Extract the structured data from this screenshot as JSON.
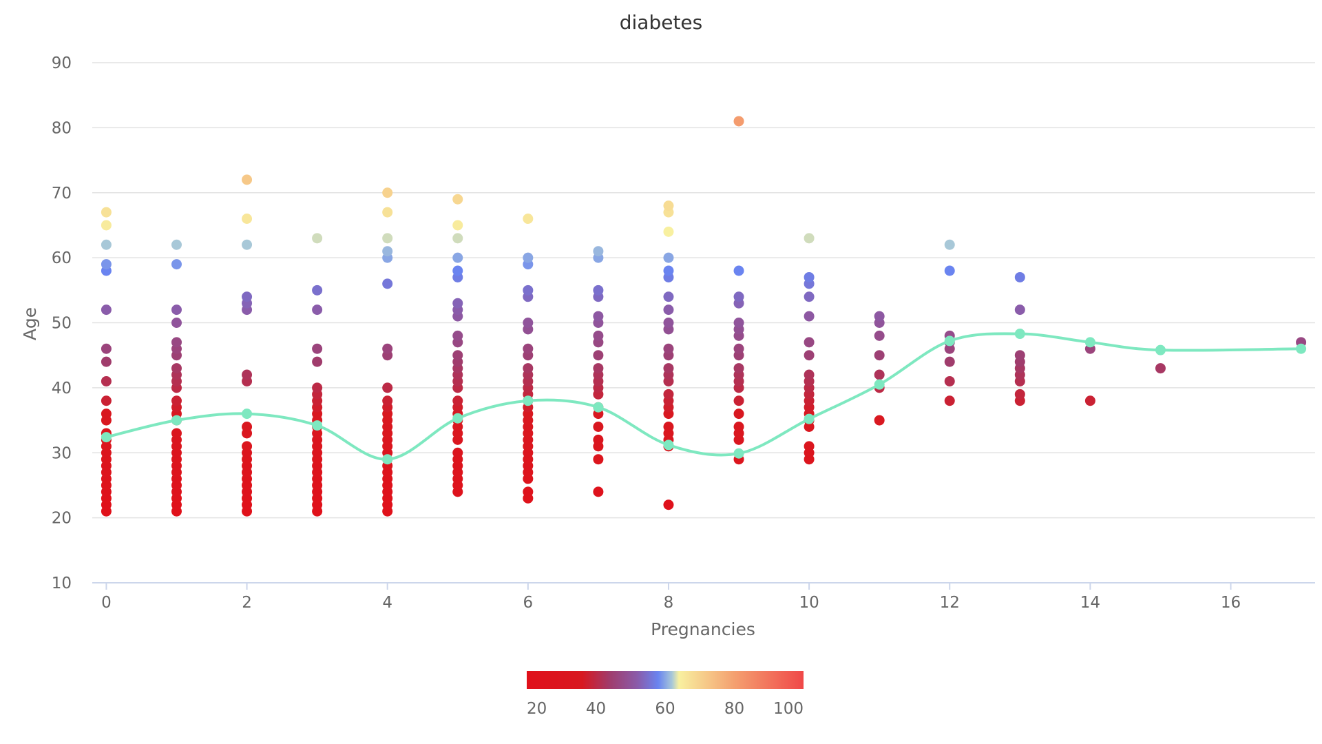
{
  "chart_data": {
    "type": "scatter",
    "title": "diabetes",
    "xlabel": "Pregnancies",
    "ylabel": "Age",
    "xlim": [
      -0.2,
      17.2
    ],
    "ylim": [
      10,
      90
    ],
    "x_ticks": [
      0,
      2,
      4,
      6,
      8,
      10,
      12,
      14,
      16
    ],
    "y_ticks": [
      10,
      20,
      30,
      40,
      50,
      60,
      70,
      80,
      90
    ],
    "grid": true,
    "colorbar": {
      "label_ticks": [
        20,
        40,
        60,
        80,
        100
      ],
      "range": [
        20,
        100
      ],
      "stops": [
        {
          "value": 20,
          "color": "#e0101a"
        },
        {
          "value": 36,
          "color": "#d81820"
        },
        {
          "value": 44,
          "color": "#a03c6c"
        },
        {
          "value": 52,
          "color": "#8a5caa"
        },
        {
          "value": 58,
          "color": "#6a84f0"
        },
        {
          "value": 62,
          "color": "#a8c8d8"
        },
        {
          "value": 64,
          "color": "#f8f0a0"
        },
        {
          "value": 80,
          "color": "#f4a070"
        },
        {
          "value": 100,
          "color": "#f04848"
        }
      ]
    },
    "series": [
      {
        "type": "scatter",
        "color_by": "Age",
        "points": [
          [
            0,
            21
          ],
          [
            0,
            22
          ],
          [
            0,
            23
          ],
          [
            0,
            24
          ],
          [
            0,
            25
          ],
          [
            0,
            26
          ],
          [
            0,
            27
          ],
          [
            0,
            28
          ],
          [
            0,
            29
          ],
          [
            0,
            30
          ],
          [
            0,
            31
          ],
          [
            0,
            32
          ],
          [
            0,
            33
          ],
          [
            0,
            35
          ],
          [
            0,
            36
          ],
          [
            0,
            38
          ],
          [
            0,
            41
          ],
          [
            0,
            44
          ],
          [
            0,
            46
          ],
          [
            0,
            52
          ],
          [
            0,
            58
          ],
          [
            0,
            59
          ],
          [
            0,
            62
          ],
          [
            0,
            65
          ],
          [
            0,
            67
          ],
          [
            1,
            21
          ],
          [
            1,
            22
          ],
          [
            1,
            23
          ],
          [
            1,
            24
          ],
          [
            1,
            25
          ],
          [
            1,
            26
          ],
          [
            1,
            27
          ],
          [
            1,
            28
          ],
          [
            1,
            29
          ],
          [
            1,
            30
          ],
          [
            1,
            31
          ],
          [
            1,
            32
          ],
          [
            1,
            33
          ],
          [
            1,
            35
          ],
          [
            1,
            36
          ],
          [
            1,
            37
          ],
          [
            1,
            38
          ],
          [
            1,
            40
          ],
          [
            1,
            41
          ],
          [
            1,
            42
          ],
          [
            1,
            43
          ],
          [
            1,
            45
          ],
          [
            1,
            46
          ],
          [
            1,
            47
          ],
          [
            1,
            50
          ],
          [
            1,
            52
          ],
          [
            1,
            59
          ],
          [
            1,
            62
          ],
          [
            2,
            21
          ],
          [
            2,
            22
          ],
          [
            2,
            23
          ],
          [
            2,
            24
          ],
          [
            2,
            25
          ],
          [
            2,
            26
          ],
          [
            2,
            27
          ],
          [
            2,
            28
          ],
          [
            2,
            29
          ],
          [
            2,
            30
          ],
          [
            2,
            31
          ],
          [
            2,
            33
          ],
          [
            2,
            34
          ],
          [
            2,
            41
          ],
          [
            2,
            42
          ],
          [
            2,
            52
          ],
          [
            2,
            53
          ],
          [
            2,
            54
          ],
          [
            2,
            62
          ],
          [
            2,
            66
          ],
          [
            2,
            72
          ],
          [
            3,
            21
          ],
          [
            3,
            22
          ],
          [
            3,
            23
          ],
          [
            3,
            24
          ],
          [
            3,
            25
          ],
          [
            3,
            26
          ],
          [
            3,
            27
          ],
          [
            3,
            28
          ],
          [
            3,
            29
          ],
          [
            3,
            30
          ],
          [
            3,
            31
          ],
          [
            3,
            32
          ],
          [
            3,
            33
          ],
          [
            3,
            34
          ],
          [
            3,
            35
          ],
          [
            3,
            36
          ],
          [
            3,
            37
          ],
          [
            3,
            38
          ],
          [
            3,
            39
          ],
          [
            3,
            40
          ],
          [
            3,
            44
          ],
          [
            3,
            46
          ],
          [
            3,
            52
          ],
          [
            3,
            55
          ],
          [
            3,
            63
          ],
          [
            4,
            21
          ],
          [
            4,
            22
          ],
          [
            4,
            23
          ],
          [
            4,
            24
          ],
          [
            4,
            25
          ],
          [
            4,
            26
          ],
          [
            4,
            27
          ],
          [
            4,
            28
          ],
          [
            4,
            29
          ],
          [
            4,
            30
          ],
          [
            4,
            31
          ],
          [
            4,
            32
          ],
          [
            4,
            33
          ],
          [
            4,
            34
          ],
          [
            4,
            35
          ],
          [
            4,
            36
          ],
          [
            4,
            37
          ],
          [
            4,
            38
          ],
          [
            4,
            40
          ],
          [
            4,
            45
          ],
          [
            4,
            46
          ],
          [
            4,
            56
          ],
          [
            4,
            60
          ],
          [
            4,
            61
          ],
          [
            4,
            63
          ],
          [
            4,
            67
          ],
          [
            4,
            70
          ],
          [
            5,
            24
          ],
          [
            5,
            25
          ],
          [
            5,
            26
          ],
          [
            5,
            27
          ],
          [
            5,
            28
          ],
          [
            5,
            29
          ],
          [
            5,
            30
          ],
          [
            5,
            32
          ],
          [
            5,
            33
          ],
          [
            5,
            34
          ],
          [
            5,
            35
          ],
          [
            5,
            36
          ],
          [
            5,
            37
          ],
          [
            5,
            38
          ],
          [
            5,
            40
          ],
          [
            5,
            41
          ],
          [
            5,
            42
          ],
          [
            5,
            43
          ],
          [
            5,
            44
          ],
          [
            5,
            45
          ],
          [
            5,
            47
          ],
          [
            5,
            48
          ],
          [
            5,
            51
          ],
          [
            5,
            52
          ],
          [
            5,
            53
          ],
          [
            5,
            57
          ],
          [
            5,
            58
          ],
          [
            5,
            60
          ],
          [
            5,
            63
          ],
          [
            5,
            65
          ],
          [
            5,
            69
          ],
          [
            6,
            23
          ],
          [
            6,
            24
          ],
          [
            6,
            26
          ],
          [
            6,
            27
          ],
          [
            6,
            28
          ],
          [
            6,
            29
          ],
          [
            6,
            30
          ],
          [
            6,
            31
          ],
          [
            6,
            32
          ],
          [
            6,
            33
          ],
          [
            6,
            34
          ],
          [
            6,
            35
          ],
          [
            6,
            36
          ],
          [
            6,
            37
          ],
          [
            6,
            38
          ],
          [
            6,
            39
          ],
          [
            6,
            40
          ],
          [
            6,
            41
          ],
          [
            6,
            42
          ],
          [
            6,
            43
          ],
          [
            6,
            45
          ],
          [
            6,
            46
          ],
          [
            6,
            49
          ],
          [
            6,
            50
          ],
          [
            6,
            54
          ],
          [
            6,
            55
          ],
          [
            6,
            59
          ],
          [
            6,
            60
          ],
          [
            6,
            66
          ],
          [
            7,
            24
          ],
          [
            7,
            29
          ],
          [
            7,
            31
          ],
          [
            7,
            32
          ],
          [
            7,
            34
          ],
          [
            7,
            36
          ],
          [
            7,
            37
          ],
          [
            7,
            39
          ],
          [
            7,
            40
          ],
          [
            7,
            41
          ],
          [
            7,
            42
          ],
          [
            7,
            43
          ],
          [
            7,
            45
          ],
          [
            7,
            47
          ],
          [
            7,
            48
          ],
          [
            7,
            50
          ],
          [
            7,
            51
          ],
          [
            7,
            54
          ],
          [
            7,
            55
          ],
          [
            7,
            60
          ],
          [
            7,
            61
          ],
          [
            8,
            22
          ],
          [
            8,
            31
          ],
          [
            8,
            32
          ],
          [
            8,
            33
          ],
          [
            8,
            34
          ],
          [
            8,
            36
          ],
          [
            8,
            37
          ],
          [
            8,
            38
          ],
          [
            8,
            39
          ],
          [
            8,
            41
          ],
          [
            8,
            42
          ],
          [
            8,
            43
          ],
          [
            8,
            45
          ],
          [
            8,
            46
          ],
          [
            8,
            49
          ],
          [
            8,
            50
          ],
          [
            8,
            52
          ],
          [
            8,
            54
          ],
          [
            8,
            57
          ],
          [
            8,
            58
          ],
          [
            8,
            60
          ],
          [
            8,
            64
          ],
          [
            8,
            67
          ],
          [
            8,
            68
          ],
          [
            9,
            29
          ],
          [
            9,
            32
          ],
          [
            9,
            33
          ],
          [
            9,
            34
          ],
          [
            9,
            36
          ],
          [
            9,
            38
          ],
          [
            9,
            40
          ],
          [
            9,
            41
          ],
          [
            9,
            42
          ],
          [
            9,
            43
          ],
          [
            9,
            45
          ],
          [
            9,
            46
          ],
          [
            9,
            48
          ],
          [
            9,
            49
          ],
          [
            9,
            50
          ],
          [
            9,
            53
          ],
          [
            9,
            54
          ],
          [
            9,
            58
          ],
          [
            9,
            81
          ],
          [
            10,
            29
          ],
          [
            10,
            30
          ],
          [
            10,
            31
          ],
          [
            10,
            34
          ],
          [
            10,
            35
          ],
          [
            10,
            36
          ],
          [
            10,
            37
          ],
          [
            10,
            38
          ],
          [
            10,
            39
          ],
          [
            10,
            40
          ],
          [
            10,
            41
          ],
          [
            10,
            42
          ],
          [
            10,
            45
          ],
          [
            10,
            47
          ],
          [
            10,
            51
          ],
          [
            10,
            54
          ],
          [
            10,
            56
          ],
          [
            10,
            57
          ],
          [
            10,
            63
          ],
          [
            11,
            35
          ],
          [
            11,
            40
          ],
          [
            11,
            42
          ],
          [
            11,
            45
          ],
          [
            11,
            48
          ],
          [
            11,
            50
          ],
          [
            11,
            51
          ],
          [
            12,
            38
          ],
          [
            12,
            41
          ],
          [
            12,
            44
          ],
          [
            12,
            46
          ],
          [
            12,
            47
          ],
          [
            12,
            48
          ],
          [
            12,
            58
          ],
          [
            12,
            62
          ],
          [
            13,
            38
          ],
          [
            13,
            39
          ],
          [
            13,
            41
          ],
          [
            13,
            42
          ],
          [
            13,
            43
          ],
          [
            13,
            44
          ],
          [
            13,
            45
          ],
          [
            13,
            52
          ],
          [
            13,
            57
          ],
          [
            14,
            38
          ],
          [
            14,
            46
          ],
          [
            15,
            43
          ],
          [
            17,
            47
          ]
        ]
      },
      {
        "type": "line",
        "smooth": true,
        "color": "#7ee8c0",
        "x": [
          0,
          1,
          2,
          3,
          4,
          5,
          6,
          7,
          8,
          9,
          10,
          11,
          12,
          13,
          14,
          15,
          17
        ],
        "y": [
          32.4,
          35.0,
          36.0,
          34.2,
          29.0,
          35.3,
          38.0,
          37.0,
          31.2,
          29.9,
          35.2,
          40.5,
          47.2,
          48.3,
          47.0,
          45.8,
          46.0
        ]
      }
    ]
  }
}
